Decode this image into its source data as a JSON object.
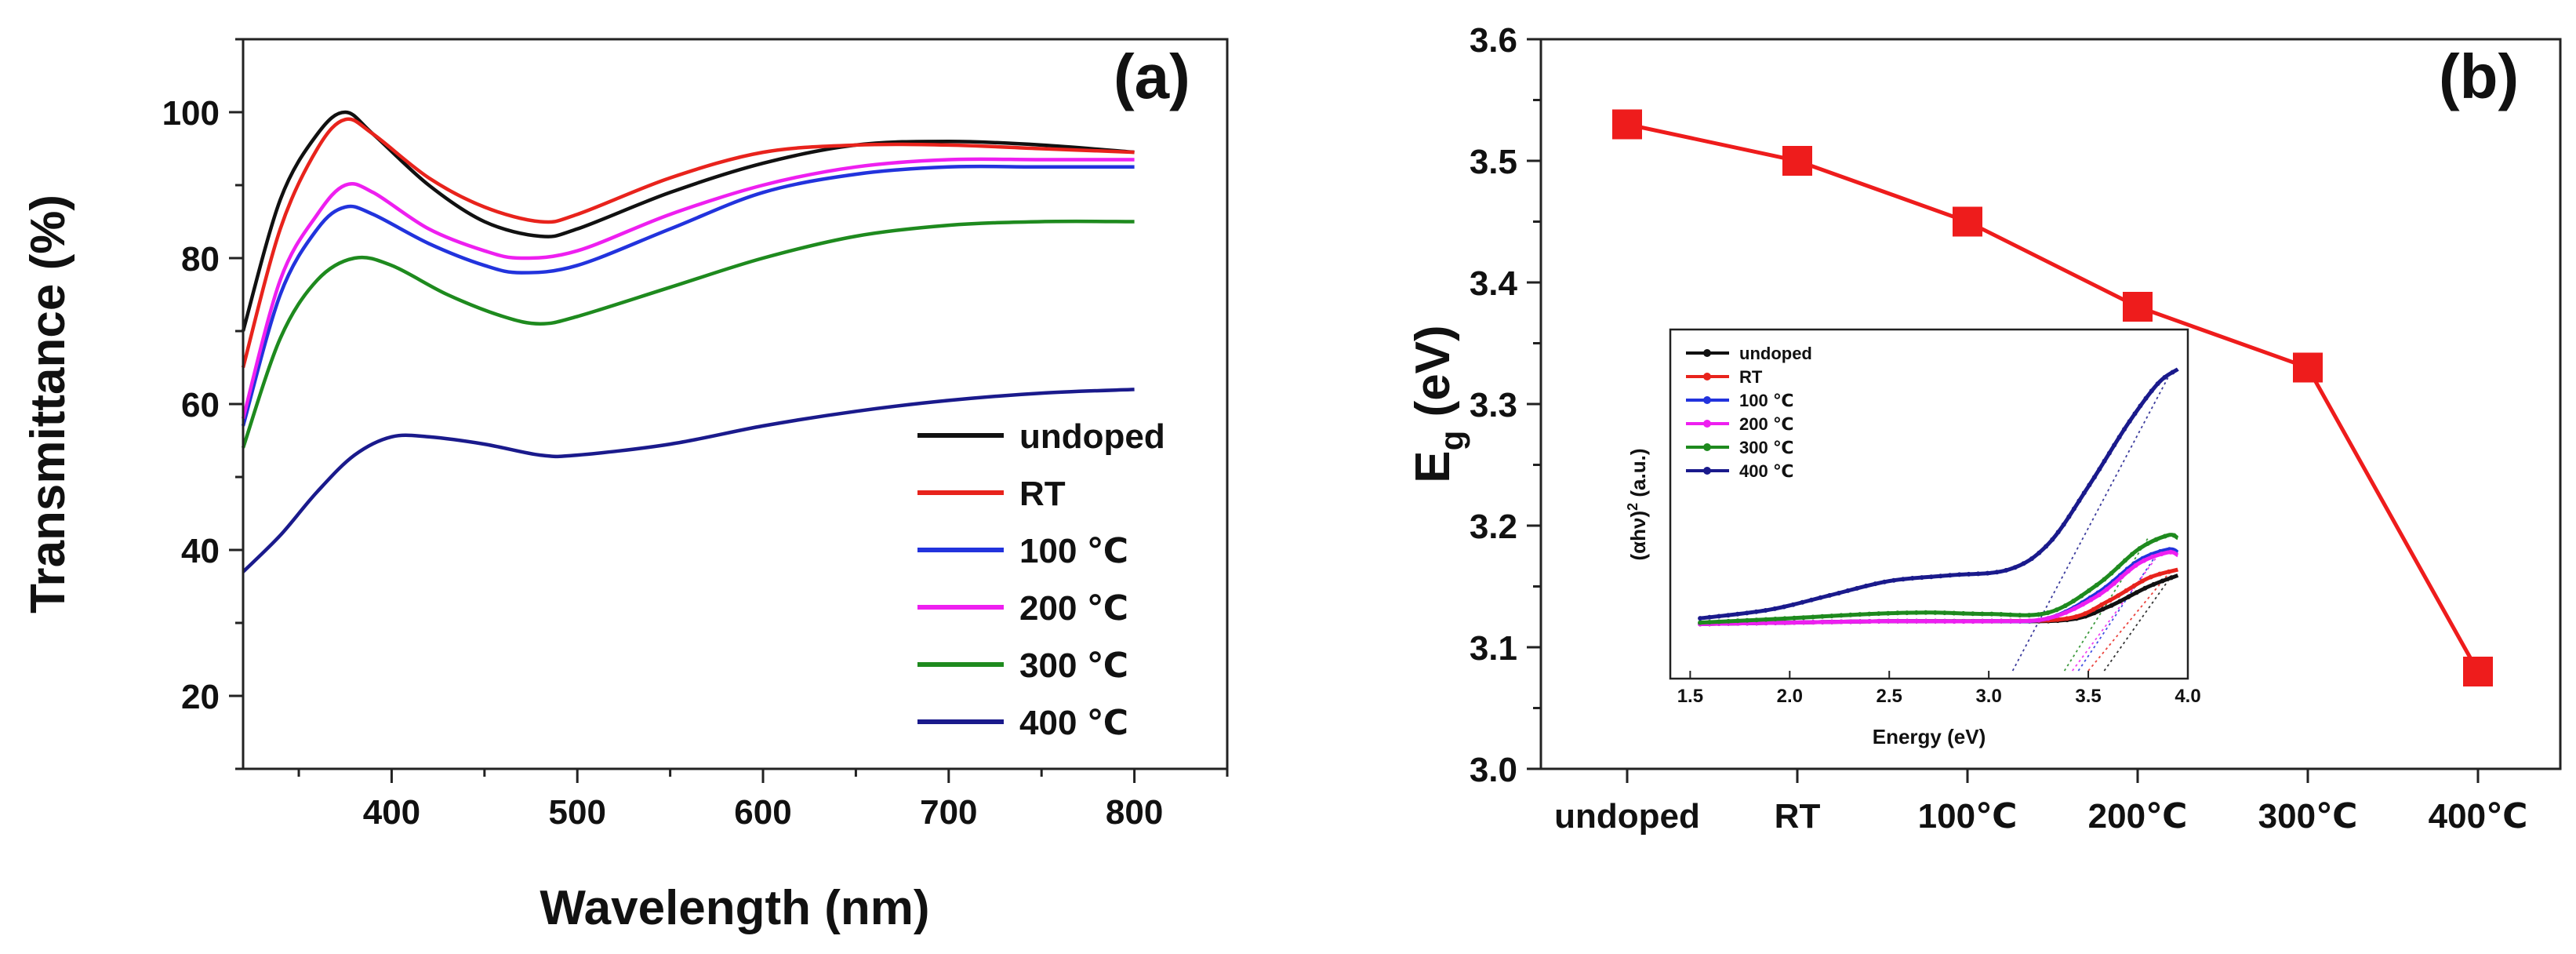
{
  "chart_data": [
    {
      "type": "line",
      "panel_label": "(a)",
      "xlabel": "Wavelength (nm)",
      "ylabel": "Transmittance (%)",
      "xlim": [
        320,
        850
      ],
      "ylim": [
        10,
        110
      ],
      "xticks": [
        400,
        500,
        600,
        700,
        800
      ],
      "yticks": [
        20,
        40,
        60,
        80,
        100
      ],
      "legend_position": "bottom-right",
      "series": [
        {
          "name": "undoped",
          "color": "#111111",
          "x": [
            320,
            340,
            360,
            375,
            390,
            420,
            450,
            480,
            500,
            550,
            600,
            650,
            700,
            750,
            800
          ],
          "y": [
            70,
            88,
            97,
            100,
            97,
            90,
            85,
            83,
            84,
            89,
            93,
            95.5,
            96,
            95.5,
            94.5
          ]
        },
        {
          "name": "RT",
          "color": "#e8231c",
          "x": [
            320,
            340,
            360,
            375,
            390,
            420,
            450,
            480,
            500,
            550,
            600,
            650,
            700,
            750,
            800
          ],
          "y": [
            65,
            84,
            95,
            99,
            97,
            91,
            87,
            85,
            86,
            91,
            94.5,
            95.5,
            95.5,
            95,
            94.5
          ]
        },
        {
          "name": "100 ℃",
          "color": "#2233dd",
          "x": [
            320,
            340,
            360,
            375,
            390,
            420,
            450,
            470,
            500,
            550,
            600,
            650,
            700,
            750,
            800
          ],
          "y": [
            57,
            75,
            84,
            87,
            86,
            82,
            79,
            78,
            79,
            84,
            89,
            91.5,
            92.5,
            92.5,
            92.5
          ]
        },
        {
          "name": "200 ℃",
          "color": "#ee1ff0",
          "x": [
            320,
            340,
            360,
            375,
            390,
            420,
            450,
            470,
            500,
            550,
            600,
            650,
            700,
            750,
            800
          ],
          "y": [
            58,
            77,
            86,
            90,
            89,
            84,
            81,
            80,
            81,
            86,
            90,
            92.5,
            93.5,
            93.5,
            93.5
          ]
        },
        {
          "name": "300 ℃",
          "color": "#1e8a1e",
          "x": [
            320,
            340,
            360,
            380,
            400,
            430,
            460,
            480,
            500,
            550,
            600,
            650,
            700,
            750,
            800
          ],
          "y": [
            54,
            69,
            77,
            80,
            79,
            75,
            72,
            71,
            72,
            76,
            80,
            83,
            84.5,
            85,
            85
          ]
        },
        {
          "name": "400 ℃",
          "color": "#1a1a8c",
          "x": [
            320,
            340,
            360,
            380,
            400,
            420,
            450,
            480,
            500,
            550,
            600,
            650,
            700,
            750,
            800
          ],
          "y": [
            37,
            42,
            48,
            53,
            55.5,
            55.5,
            54.5,
            53,
            53,
            54.5,
            57,
            59,
            60.5,
            61.5,
            62
          ]
        }
      ]
    },
    {
      "type": "line",
      "panel_label": "(b)",
      "ylabel_main": "E",
      "ylabel_sub": "g",
      "ylabel_unit": " (eV)",
      "categories": [
        "undoped",
        "RT",
        "100℃",
        "200℃",
        "300℃",
        "400℃"
      ],
      "values": [
        3.53,
        3.5,
        3.45,
        3.38,
        3.33,
        3.08
      ],
      "ylim": [
        3.0,
        3.6
      ],
      "yticks": [
        "3.0",
        "3.1",
        "3.2",
        "3.3",
        "3.4",
        "3.5",
        "3.6"
      ],
      "color": "#ee1c1c",
      "marker": "square"
    },
    {
      "type": "line",
      "inset_of": "(b)",
      "xlabel": "Energy (eV)",
      "ylabel_main": "(αhν)",
      "ylabel_sup": "2",
      "ylabel_unit": " (a.u.)",
      "xlim": [
        1.4,
        4.0
      ],
      "ylim": [
        0,
        1
      ],
      "xticks": [
        "1.5",
        "2.0",
        "2.5",
        "3.0",
        "3.5",
        "4.0"
      ],
      "legend_position": "top-left",
      "series": [
        {
          "name": "undoped",
          "color": "#111111",
          "x": [
            1.55,
            2.0,
            2.5,
            3.0,
            3.4,
            3.6,
            3.8,
            3.95
          ],
          "y": [
            0.04,
            0.045,
            0.05,
            0.05,
            0.055,
            0.1,
            0.17,
            0.21
          ],
          "extrapolated_x": [
            3.58,
            3.92
          ]
        },
        {
          "name": "RT",
          "color": "#e8231c",
          "x": [
            1.55,
            2.0,
            2.5,
            3.0,
            3.4,
            3.6,
            3.8,
            3.95
          ],
          "y": [
            0.04,
            0.045,
            0.05,
            0.05,
            0.06,
            0.12,
            0.2,
            0.23
          ],
          "extrapolated_x": [
            3.5,
            3.92
          ]
        },
        {
          "name": "100 ℃",
          "color": "#2233dd",
          "x": [
            1.55,
            2.0,
            2.5,
            3.0,
            3.3,
            3.55,
            3.75,
            3.9,
            3.95
          ],
          "y": [
            0.04,
            0.045,
            0.05,
            0.05,
            0.06,
            0.15,
            0.26,
            0.3,
            0.29
          ],
          "extrapolated_x": [
            3.45,
            3.85
          ]
        },
        {
          "name": "200 ℃",
          "color": "#ee1ff0",
          "x": [
            1.55,
            2.0,
            2.5,
            3.0,
            3.3,
            3.55,
            3.75,
            3.9,
            3.95
          ],
          "y": [
            0.04,
            0.045,
            0.05,
            0.05,
            0.06,
            0.14,
            0.25,
            0.29,
            0.28
          ],
          "extrapolated_x": [
            3.42,
            3.85
          ]
        },
        {
          "name": "300 ℃",
          "color": "#1e8a1e",
          "x": [
            1.55,
            2.0,
            2.4,
            2.7,
            3.0,
            3.3,
            3.55,
            3.75,
            3.9,
            3.95
          ],
          "y": [
            0.045,
            0.06,
            0.075,
            0.08,
            0.075,
            0.08,
            0.18,
            0.3,
            0.35,
            0.34
          ],
          "extrapolated_x": [
            3.38,
            3.8
          ]
        },
        {
          "name": "400 ℃",
          "color": "#1a1a8c",
          "x": [
            1.55,
            1.9,
            2.2,
            2.5,
            2.8,
            3.1,
            3.3,
            3.5,
            3.7,
            3.85,
            3.95
          ],
          "y": [
            0.06,
            0.09,
            0.14,
            0.19,
            0.21,
            0.23,
            0.32,
            0.52,
            0.74,
            0.88,
            0.93
          ],
          "extrapolated_x": [
            3.12,
            3.9
          ]
        }
      ]
    }
  ]
}
